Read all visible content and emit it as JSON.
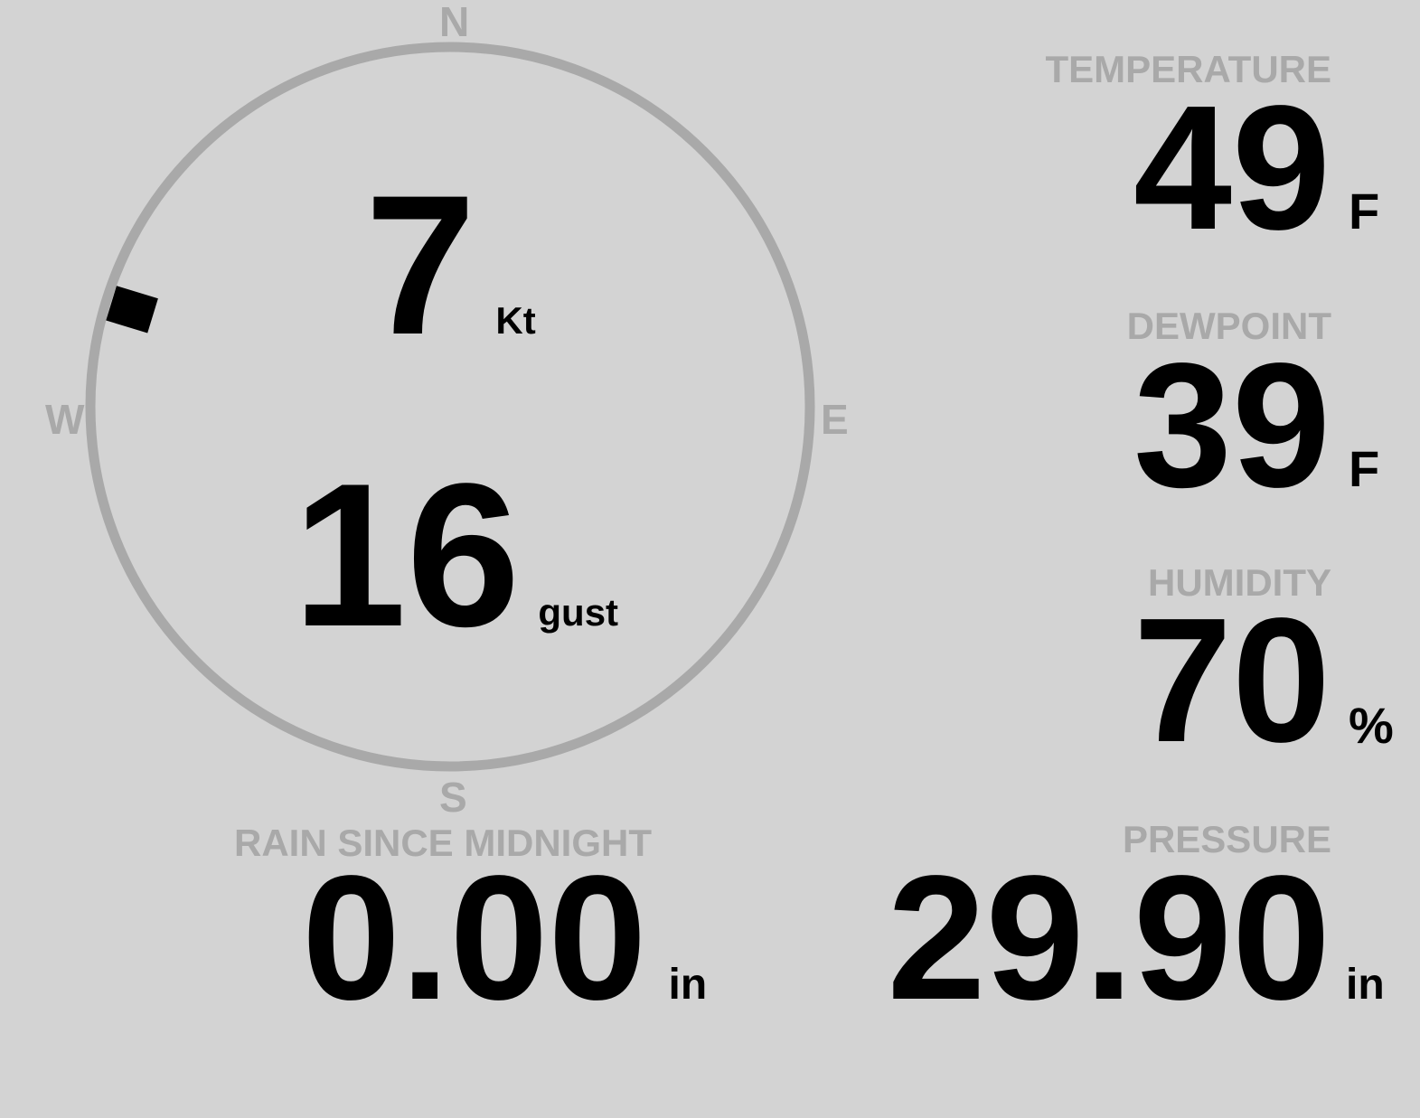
{
  "compass": {
    "north": "N",
    "south": "S",
    "east": "E",
    "west": "W",
    "wind_direction_deg": 287,
    "ring_color": "#a9a9a9",
    "marker_color": "#000000"
  },
  "wind": {
    "speed": "7",
    "speed_unit": "Kt",
    "gust": "16",
    "gust_unit": "gust"
  },
  "temperature": {
    "label": "TEMPERATURE",
    "value": "49",
    "unit": "F"
  },
  "dewpoint": {
    "label": "DEWPOINT",
    "value": "39",
    "unit": "F"
  },
  "humidity": {
    "label": "HUMIDITY",
    "value": "70",
    "unit": "%"
  },
  "rain": {
    "label": "RAIN SINCE MIDNIGHT",
    "value": "0.00",
    "unit": "in"
  },
  "pressure": {
    "label": "PRESSURE",
    "value": "29.90",
    "unit": "in"
  }
}
